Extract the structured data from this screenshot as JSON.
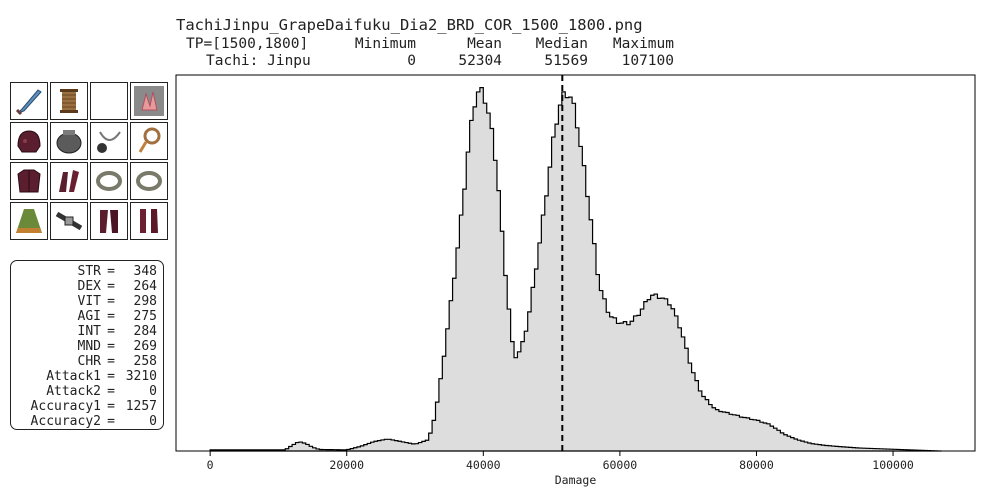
{
  "header": {
    "filename": "TachiJinpu_GrapeDaifuku_Dia2_BRD_COR_1500_1800.png",
    "stats_header": [
      "TP=[1500,1800]",
      "Minimum",
      "Mean",
      "Median",
      "Maximum"
    ],
    "stats_row": [
      "Tachi: Jinpu",
      "0",
      "52304",
      "51569",
      "107100"
    ]
  },
  "gear_icons": [
    "sword-icon",
    "spool-icon",
    "empty-slot-icon",
    "crystal-icon",
    "helmet-icon",
    "pot-icon",
    "gemstone-necklace-icon",
    "ring-earring-icon",
    "chest-armor-icon",
    "gloves-icon",
    "ring-icon",
    "ring-icon",
    "cape-icon",
    "belt-icon",
    "legs-armor-icon",
    "boots-icon"
  ],
  "stats": [
    {
      "label": "STR",
      "value": "348"
    },
    {
      "label": "DEX",
      "value": "264"
    },
    {
      "label": "VIT",
      "value": "298"
    },
    {
      "label": "AGI",
      "value": "275"
    },
    {
      "label": "INT",
      "value": "284"
    },
    {
      "label": "MND",
      "value": "269"
    },
    {
      "label": "CHR",
      "value": "258"
    },
    {
      "label": "Attack1",
      "value": "3210"
    },
    {
      "label": "Attack2",
      "value": "0"
    },
    {
      "label": "Accuracy1",
      "value": "1257"
    },
    {
      "label": "Accuracy2",
      "value": "0"
    }
  ],
  "chart_data": {
    "type": "area",
    "title": "",
    "xlabel": "Damage",
    "ylabel": "",
    "xlim": [
      -5000,
      112000
    ],
    "ylim": [
      0,
      1
    ],
    "xticks": [
      0,
      20000,
      40000,
      60000,
      80000,
      100000
    ],
    "xtick_labels": [
      "0",
      "20000",
      "40000",
      "60000",
      "80000",
      "100000"
    ],
    "grid": false,
    "median_line": 51569,
    "fill_color": "#dddddd",
    "line_color": "#000000",
    "points": [
      [
        0,
        0.003
      ],
      [
        11000,
        0.003
      ],
      [
        12000,
        0.015
      ],
      [
        13000,
        0.025
      ],
      [
        14000,
        0.02
      ],
      [
        15000,
        0.01
      ],
      [
        16000,
        0.004
      ],
      [
        20000,
        0.003
      ],
      [
        22000,
        0.012
      ],
      [
        24000,
        0.025
      ],
      [
        26000,
        0.032
      ],
      [
        28000,
        0.025
      ],
      [
        30000,
        0.018
      ],
      [
        32000,
        0.03
      ],
      [
        33000,
        0.1
      ],
      [
        34000,
        0.22
      ],
      [
        35000,
        0.36
      ],
      [
        36000,
        0.5
      ],
      [
        37000,
        0.66
      ],
      [
        38000,
        0.84
      ],
      [
        39000,
        0.955
      ],
      [
        40000,
        0.955
      ],
      [
        41000,
        0.88
      ],
      [
        42000,
        0.75
      ],
      [
        43000,
        0.52
      ],
      [
        44000,
        0.33
      ],
      [
        44500,
        0.245
      ],
      [
        45500,
        0.27
      ],
      [
        46500,
        0.34
      ],
      [
        48000,
        0.52
      ],
      [
        49500,
        0.72
      ],
      [
        50500,
        0.86
      ],
      [
        51500,
        0.94
      ],
      [
        52500,
        0.955
      ],
      [
        53500,
        0.9
      ],
      [
        55000,
        0.72
      ],
      [
        57000,
        0.44
      ],
      [
        58500,
        0.36
      ],
      [
        60000,
        0.34
      ],
      [
        61500,
        0.34
      ],
      [
        63000,
        0.37
      ],
      [
        64500,
        0.415
      ],
      [
        66000,
        0.41
      ],
      [
        67500,
        0.39
      ],
      [
        69000,
        0.32
      ],
      [
        70500,
        0.22
      ],
      [
        72000,
        0.15
      ],
      [
        74000,
        0.11
      ],
      [
        76000,
        0.1
      ],
      [
        78000,
        0.09
      ],
      [
        80000,
        0.082
      ],
      [
        82000,
        0.07
      ],
      [
        84000,
        0.045
      ],
      [
        86000,
        0.03
      ],
      [
        88000,
        0.02
      ],
      [
        90000,
        0.015
      ],
      [
        92000,
        0.012
      ],
      [
        95000,
        0.008
      ],
      [
        98000,
        0.006
      ],
      [
        101000,
        0.004
      ],
      [
        104000,
        0.002
      ],
      [
        107000,
        0.0
      ]
    ]
  }
}
